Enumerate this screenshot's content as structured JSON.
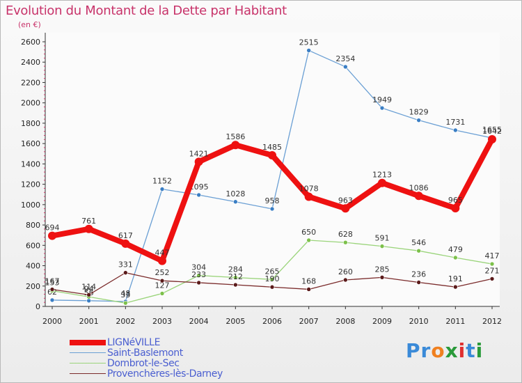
{
  "header": {
    "title": "Evolution du Montant de la Dette par Habitant",
    "unit": "(en €)"
  },
  "logo": {
    "text": "Proxiti",
    "colors": [
      "#3a8ad8",
      "#3a8ad8",
      "#f08020",
      "#2a9a3a",
      "#e03030",
      "#3a8ad8",
      "#2a9a3a"
    ]
  },
  "chart_data": {
    "type": "line",
    "title": "Evolution du Montant de la Dette par Habitant",
    "subtitle": "(en €)",
    "xlabel": "",
    "ylabel": "",
    "x": [
      "2000",
      "2001",
      "2002",
      "2003",
      "2004",
      "2005",
      "2006",
      "2007",
      "2008",
      "2009",
      "2010",
      "2011",
      "2012"
    ],
    "yticks": [
      0,
      200,
      400,
      600,
      800,
      1000,
      1200,
      1400,
      1600,
      1800,
      2000,
      2200,
      2400,
      2600
    ],
    "ylim": [
      0,
      2600
    ],
    "grid": false,
    "legend": "bottom-left",
    "series": [
      {
        "name": "Saint-Baslemont",
        "color": "#6a9fd4",
        "point_color": "#3a7ec4",
        "width": 1.3,
        "values": [
          62,
          56,
          48,
          1152,
          1095,
          1028,
          958,
          2515,
          2354,
          1949,
          1829,
          1731,
          1655
        ]
      },
      {
        "name": "Dombrot-le-Sec",
        "color": "#9ad47a",
        "point_color": "#7cc04a",
        "width": 1.3,
        "values": [
          153,
          94,
          33,
          127,
          304,
          284,
          265,
          650,
          628,
          591,
          546,
          479,
          417
        ]
      },
      {
        "name": "Provenchères-lès-Darney",
        "color": "#7a2a2a",
        "point_color": "#5a1a1a",
        "width": 1.3,
        "values": [
          167,
          114,
          331,
          252,
          233,
          212,
          190,
          168,
          260,
          285,
          236,
          191,
          271
        ]
      },
      {
        "name": "LIGNéVILLE",
        "color": "#ee1111",
        "point_color": "#ee1111",
        "width": 8,
        "values": [
          694,
          761,
          617,
          447,
          1421,
          1586,
          1485,
          1078,
          963,
          1213,
          1086,
          965,
          1642
        ]
      }
    ],
    "legend_order": [
      "LIGNéVILLE",
      "Saint-Baslemont",
      "Dombrot-le-Sec",
      "Provenchères-lès-Darney"
    ]
  }
}
